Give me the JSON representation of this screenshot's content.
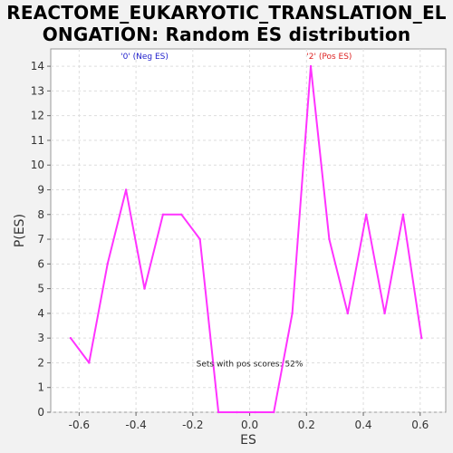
{
  "chart_data": {
    "type": "line",
    "title_lines": [
      "REACTOME_EUKARYOTIC_TRANSLATION_EL",
      "ONGATION: Random ES distribution"
    ],
    "xlabel": "ES",
    "ylabel": "P(ES)",
    "xlim": [
      -0.7,
      0.69
    ],
    "ylim": [
      0,
      14.7
    ],
    "xticks": [
      -0.6,
      -0.4,
      -0.2,
      0.0,
      0.2,
      0.4,
      0.6
    ],
    "xtick_labels": [
      "-0.6",
      "-0.4",
      "-0.2",
      "0.0",
      "0.2",
      "0.4",
      "0.6"
    ],
    "yticks": [
      0,
      1,
      2,
      3,
      4,
      5,
      6,
      7,
      8,
      9,
      10,
      11,
      12,
      13,
      14
    ],
    "ytick_labels": [
      "0",
      "1",
      "2",
      "3",
      "4",
      "5",
      "6",
      "7",
      "8",
      "9",
      "10",
      "11",
      "12",
      "13",
      "14"
    ],
    "grid": true,
    "series": [
      {
        "color": "#ff33ff",
        "x": [
          -0.63,
          -0.565,
          -0.5,
          -0.435,
          -0.37,
          -0.305,
          -0.24,
          -0.175,
          -0.11,
          -0.045,
          0.02,
          0.085,
          0.15,
          0.215,
          0.28,
          0.345,
          0.41,
          0.475,
          0.54,
          0.605
        ],
        "y": [
          3,
          2,
          6,
          9,
          5,
          8,
          8,
          7,
          0,
          0,
          0,
          0,
          4,
          14,
          7,
          4,
          8,
          4,
          8,
          3
        ]
      }
    ],
    "annotations": [
      {
        "text": "'0' (Neg ES)",
        "x": -0.37,
        "y": 14.3,
        "color": "#2222cc"
      },
      {
        "text": "'2' (Pos ES)",
        "x": 0.28,
        "y": 14.3,
        "color": "#dd2222"
      },
      {
        "text": "Sets with pos scores: 52%",
        "x": 0.0,
        "y": 1.85,
        "color": "#222222"
      }
    ]
  }
}
